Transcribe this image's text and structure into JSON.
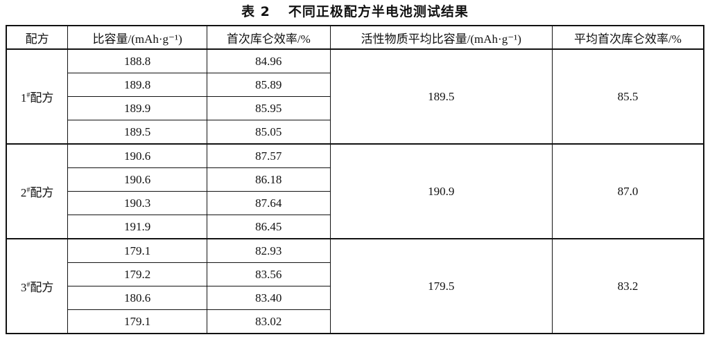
{
  "title": {
    "number": "表 2",
    "text": "不同正极配方半电池测试结果"
  },
  "headers": [
    "配方",
    "比容量/(mAh·g⁻¹)",
    "首次库仑效率/%",
    "活性物质平均比容量/(mAh·g⁻¹)",
    "平均首次库仑效率/%"
  ],
  "groups": [
    {
      "label": "1#配方",
      "num": "1",
      "sup": "#",
      "suffix": "配方",
      "capacity": [
        "188.8",
        "189.8",
        "189.9",
        "189.5"
      ],
      "efficiency": [
        "84.96",
        "85.89",
        "85.95",
        "85.05"
      ],
      "avg_capacity": "189.5",
      "avg_efficiency": "85.5"
    },
    {
      "label": "2#配方",
      "num": "2",
      "sup": "#",
      "suffix": "配方",
      "capacity": [
        "190.6",
        "190.6",
        "190.3",
        "191.9"
      ],
      "efficiency": [
        "87.57",
        "86.18",
        "87.64",
        "86.45"
      ],
      "avg_capacity": "190.9",
      "avg_efficiency": "87.0"
    },
    {
      "label": "3#配方",
      "num": "3",
      "sup": "#",
      "suffix": "配方",
      "capacity": [
        "179.1",
        "179.2",
        "180.6",
        "179.1"
      ],
      "efficiency": [
        "82.93",
        "83.56",
        "83.40",
        "83.02"
      ],
      "avg_capacity": "179.5",
      "avg_efficiency": "83.2"
    }
  ]
}
